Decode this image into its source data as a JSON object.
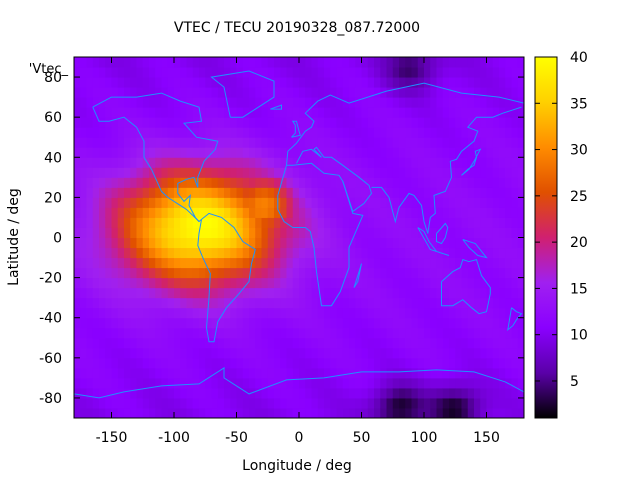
{
  "chart_data": {
    "type": "heatmap",
    "title": "VTEC / TECU 20190328_087.72000",
    "xlabel": "Longitude / deg",
    "ylabel": "Latitude / deg",
    "legend_label": "'Vtec_",
    "xlim": [
      -180,
      180
    ],
    "ylim": [
      -90,
      90
    ],
    "x_ticks": [
      {
        "value": -150,
        "label": "-150"
      },
      {
        "value": -100,
        "label": "-100"
      },
      {
        "value": -50,
        "label": "-50"
      },
      {
        "value": 0,
        "label": "0"
      },
      {
        "value": 50,
        "label": "50"
      },
      {
        "value": 100,
        "label": "100"
      },
      {
        "value": 150,
        "label": "150"
      }
    ],
    "y_ticks": [
      {
        "value": -80,
        "label": "-80"
      },
      {
        "value": -60,
        "label": "-60"
      },
      {
        "value": -40,
        "label": "-40"
      },
      {
        "value": -20,
        "label": "-20"
      },
      {
        "value": 0,
        "label": "0"
      },
      {
        "value": 20,
        "label": "20"
      },
      {
        "value": 40,
        "label": "40"
      },
      {
        "value": 60,
        "label": "60"
      },
      {
        "value": 80,
        "label": "80"
      }
    ],
    "colorbar": {
      "range": [
        1,
        40
      ],
      "ticks": [
        {
          "value": 5,
          "label": "5"
        },
        {
          "value": 10,
          "label": "10"
        },
        {
          "value": 15,
          "label": "15"
        },
        {
          "value": 20,
          "label": "20"
        },
        {
          "value": 25,
          "label": "25"
        },
        {
          "value": 30,
          "label": "30"
        },
        {
          "value": 35,
          "label": "35"
        },
        {
          "value": 40,
          "label": "40"
        }
      ],
      "colors": [
        "#000000",
        "#5a00a8",
        "#8a00ff",
        "#a020f0",
        "#d02070",
        "#e05000",
        "#ff8c00",
        "#ffd000",
        "#ffff00"
      ]
    },
    "grid_step_deg": 5,
    "background_vtec": 10,
    "vtec_field": {
      "description_units": "TECU",
      "anomaly_center": {
        "lon": -80,
        "lat": 5,
        "peak": 38,
        "sigma_lon": 45,
        "sigma_lat": 20
      },
      "anomaly_secondary": {
        "lon": -30,
        "lat": 15,
        "peak": 30,
        "sigma_lon": 20,
        "sigma_lat": 12
      },
      "low_spots": [
        {
          "lon": 80,
          "lat": -85,
          "value": 2
        },
        {
          "lon": 125,
          "lat": -85,
          "value": 2
        },
        {
          "lon": 90,
          "lat": 85,
          "value": 4
        }
      ]
    },
    "coastline_color": "#1e90ff"
  }
}
